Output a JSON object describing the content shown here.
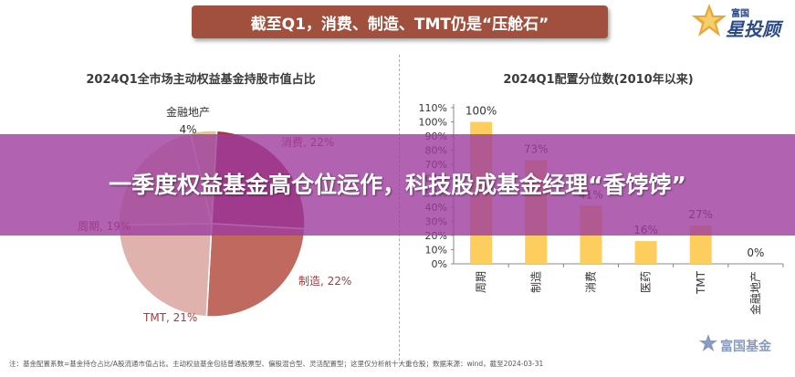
{
  "header": {
    "title": "截至Q1，消费、制造、TMT仍是“压舱石”"
  },
  "brand": {
    "name": "富国",
    "tagline": "星投顾"
  },
  "overlay": {
    "title": "一季度权益基金高仓位运作，科技股成基金经理“香饽饽”"
  },
  "footnote": {
    "text": "注：基金配置系数=基金持仓占比/A股流通市值占比。主动权益基金包括普通股票型、偏股混合型、灵活配置型；这里仅分析前十大重仓股；数据来源：wind，截至2024-03-31"
  },
  "watermark": {
    "text": "富国基金"
  },
  "colors": {
    "pie": [
      "#e2c79a",
      "#a83548",
      "#c06a5f",
      "#dfb2ad",
      "#e4cdb0"
    ],
    "bar": "#fdcd5e",
    "bar_dark": "#a63a3f",
    "header": "#a2503e",
    "overlay": "#9e3c9e"
  },
  "chart_data": [
    {
      "type": "pie",
      "title": "2024Q1全市场主动权益基金持股市值占比",
      "slices": [
        {
          "label": "金融地产",
          "value": 4,
          "value_label": "4%"
        },
        {
          "label": "消费",
          "value": 22,
          "value_label": "22%"
        },
        {
          "label": "制造",
          "value": 22,
          "value_label": "22%"
        },
        {
          "label": "TMT",
          "value": 21,
          "value_label": "21%"
        },
        {
          "label": "周期",
          "value": 19,
          "value_label": "19%"
        }
      ]
    },
    {
      "type": "bar",
      "title": "2024Q1配置分位数(2010年以来)",
      "categories": [
        "周期",
        "制造",
        "消费",
        "医药",
        "TMT",
        "金融地产"
      ],
      "values": [
        100,
        73,
        41,
        16,
        27,
        0
      ],
      "value_labels": [
        "100%",
        "73%",
        "41%",
        "16%",
        "27%",
        "0%"
      ],
      "ylim": [
        0,
        110
      ],
      "yticks": [
        "0%",
        "10%",
        "20%",
        "30%",
        "40%",
        "50%",
        "60%",
        "70%",
        "80%",
        "90%",
        "100%",
        "110%"
      ]
    }
  ]
}
